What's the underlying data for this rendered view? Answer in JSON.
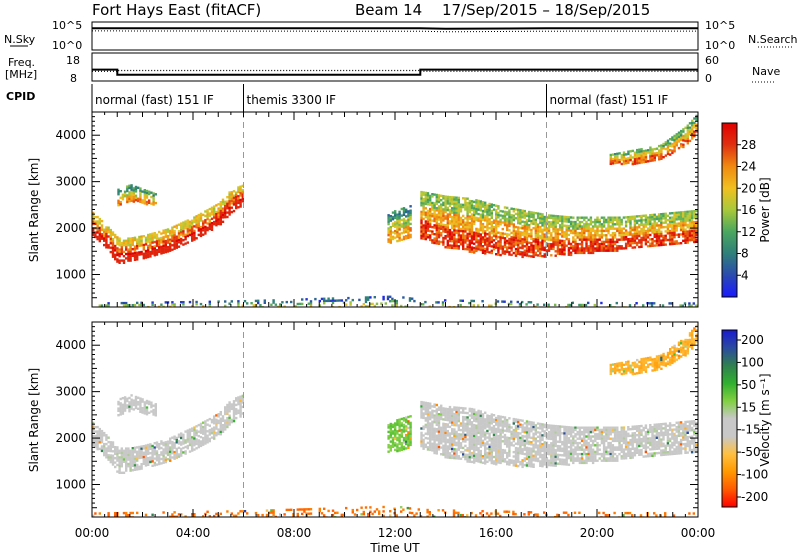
{
  "header": {
    "station": "Fort Hays East (fitACF)",
    "beam": "Beam 14",
    "date_range": "17/Sep/2015 – 18/Sep/2015"
  },
  "strips": {
    "nsky_label": "N.Sky",
    "nsearch_label": "N.Search",
    "freq_label": "Freq.",
    "freq_unit": "[MHz]",
    "nave_label": "Nave",
    "cpid_label": "CPID",
    "noise_ticks_left": [
      "10^5",
      "10^0"
    ],
    "noise_ticks_right": [
      "10^5",
      "10^0"
    ],
    "freq_ticks": [
      "18",
      "8"
    ],
    "nave_ticks": [
      "60",
      "0"
    ],
    "cpid_segments": [
      {
        "label": "normal (fast) 151 IF",
        "start_hour": 0,
        "end_hour": 6
      },
      {
        "label": "themis 3300 IF",
        "start_hour": 6,
        "end_hour": 18
      },
      {
        "label": "normal (fast) 151 IF",
        "start_hour": 18,
        "end_hour": 24
      }
    ]
  },
  "chart_data": [
    {
      "type": "line",
      "name": "noise-strip",
      "series": [
        {
          "name": "N.Sky",
          "x": [
            0,
            6,
            12,
            13,
            14,
            18,
            24
          ],
          "y": [
            10000,
            10000,
            9500,
            9800,
            8000,
            9500,
            10000
          ]
        },
        {
          "name": "N.Search",
          "x": [
            0,
            6,
            12,
            13,
            14,
            18,
            24
          ],
          "y": [
            3000,
            2800,
            2500,
            2600,
            2000,
            2600,
            2800
          ]
        }
      ],
      "yscale": "log",
      "ylim": [
        1,
        100000
      ]
    },
    {
      "type": "line",
      "name": "freq-nave-strip",
      "series": [
        {
          "name": "Freq.",
          "x": [
            0,
            1,
            1,
            13,
            13,
            24
          ],
          "y": [
            12,
            12,
            10,
            10,
            12,
            12
          ]
        },
        {
          "name": "Nave",
          "x": [
            0,
            1,
            1,
            13,
            13,
            24
          ],
          "y": [
            20,
            20,
            22,
            22,
            20,
            20
          ]
        }
      ],
      "ylim": [
        8,
        18
      ]
    },
    {
      "type": "heatmap",
      "name": "power-panel",
      "xlabel": "",
      "ylabel": "Slant Range [km]",
      "xlim": [
        0,
        24
      ],
      "ylim": [
        300,
        4500
      ],
      "xticks": [
        "00:00",
        "04:00",
        "08:00",
        "12:00",
        "16:00",
        "20:00",
        "00:00"
      ],
      "yticks": [
        1000,
        2000,
        3000,
        4000
      ],
      "colorbar": {
        "label": "Power [dB]",
        "ticks": [
          4,
          8,
          12,
          16,
          20,
          24,
          28
        ],
        "range": [
          0,
          32
        ],
        "colors": [
          "#1a1aff",
          "#2a4ab0",
          "#2f7f7a",
          "#4aa760",
          "#a8c83a",
          "#f0c020",
          "#f08a10",
          "#e03010",
          "#e00000"
        ]
      },
      "echo_bands": [
        {
          "x": [
            0,
            0.5,
            1,
            1.5,
            2,
            3,
            4,
            5,
            5.5,
            6
          ],
          "y_low": [
            1850,
            1600,
            1250,
            1300,
            1350,
            1500,
            1750,
            2050,
            2350,
            2550
          ],
          "y_high": [
            2350,
            2100,
            1800,
            1800,
            1850,
            2000,
            2250,
            2550,
            2850,
            2950
          ]
        },
        {
          "x": [
            1,
            1.5,
            2,
            2.5
          ],
          "y_low": [
            2500,
            2600,
            2550,
            2500
          ],
          "y_high": [
            2850,
            2950,
            2850,
            2750
          ]
        },
        {
          "x": [
            11.7,
            12,
            12.3,
            12.6
          ],
          "y_low": [
            1700,
            1700,
            1750,
            1800
          ],
          "y_high": [
            2300,
            2400,
            2450,
            2500
          ]
        },
        {
          "x": [
            13,
            14,
            15,
            16,
            17,
            18,
            19,
            20,
            21,
            22,
            23,
            24
          ],
          "y_low": [
            1800,
            1600,
            1500,
            1450,
            1400,
            1400,
            1450,
            1500,
            1550,
            1600,
            1650,
            1700
          ],
          "y_high": [
            2800,
            2700,
            2650,
            2500,
            2400,
            2300,
            2250,
            2250,
            2250,
            2300,
            2350,
            2400
          ]
        },
        {
          "x": [
            20.5,
            21.5,
            22.5,
            23.5,
            24
          ],
          "y_low": [
            3400,
            3400,
            3500,
            3800,
            4100
          ],
          "y_high": [
            3600,
            3700,
            3800,
            4200,
            4500
          ]
        },
        {
          "x": [
            0,
            6,
            12,
            13,
            18,
            24
          ],
          "y_low": [
            300,
            300,
            300,
            300,
            300,
            300
          ],
          "y_high": [
            400,
            450,
            550,
            480,
            420,
            400
          ]
        }
      ],
      "band_power_dB": [
        22,
        14,
        12,
        18,
        16,
        8
      ]
    },
    {
      "type": "heatmap",
      "name": "velocity-panel",
      "xlabel": "Time UT",
      "ylabel": "Slant Range [km]",
      "xlim": [
        0,
        24
      ],
      "ylim": [
        300,
        4500
      ],
      "xticks": [
        "00:00",
        "04:00",
        "08:00",
        "12:00",
        "16:00",
        "20:00",
        "00:00"
      ],
      "yticks": [
        1000,
        2000,
        3000,
        4000
      ],
      "colorbar": {
        "label": "Velocity [m s⁻¹]",
        "ticks": [
          200,
          100,
          50,
          15,
          -15,
          -50,
          -100,
          -200
        ],
        "range": [
          -250,
          250
        ],
        "colors": [
          "#ff0000",
          "#ff5a00",
          "#ff9900",
          "#ffc040",
          "#c8c8c8",
          "#c8c8c8",
          "#80d040",
          "#30b030",
          "#2f8050",
          "#2a4aa0",
          "#1a1ad0"
        ]
      },
      "band_velocity_ms": [
        0,
        -10,
        60,
        0,
        -120,
        -180
      ]
    }
  ]
}
